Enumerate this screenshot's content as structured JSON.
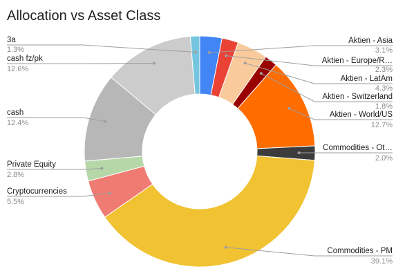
{
  "chart_data": {
    "type": "pie",
    "title": "Allocation vs Asset Class",
    "donut": true,
    "slices": [
      {
        "label": "Aktien - Asia",
        "value": 3.1,
        "pct_label": "3.1%",
        "color": "#4285f4"
      },
      {
        "label": "Aktien - Europe/R…",
        "value": 2.3,
        "pct_label": "2.3%",
        "color": "#ea4335"
      },
      {
        "label": "Aktien - LatAm",
        "value": 4.3,
        "pct_label": "4.3%",
        "color": "#f9cb9c"
      },
      {
        "label": "Aktien - Switzerland",
        "value": 1.8,
        "pct_label": "1.8%",
        "color": "#990000"
      },
      {
        "label": "Aktien - World/US",
        "value": 12.7,
        "pct_label": "12.7%",
        "color": "#ff6d01"
      },
      {
        "label": "Commodities - Ot…",
        "value": 2.0,
        "pct_label": "2.0%",
        "color": "#3c3c3c"
      },
      {
        "label": "Commodities - PM",
        "value": 39.1,
        "pct_label": "39.1%",
        "color": "#f1c232"
      },
      {
        "label": "Cryptocurrencies",
        "value": 5.5,
        "pct_label": "5.5%",
        "color": "#f07b72"
      },
      {
        "label": "Private Equity",
        "value": 2.8,
        "pct_label": "2.8%",
        "color": "#b6d7a8"
      },
      {
        "label": "cash",
        "value": 12.4,
        "pct_label": "12.4%",
        "color": "#b7b7b7"
      },
      {
        "label": "cash fz/pk",
        "value": 12.6,
        "pct_label": "12.6%",
        "color": "#cccccc"
      },
      {
        "label": "3a",
        "value": 1.3,
        "pct_label": "1.3%",
        "color": "#76c5e0"
      }
    ]
  }
}
